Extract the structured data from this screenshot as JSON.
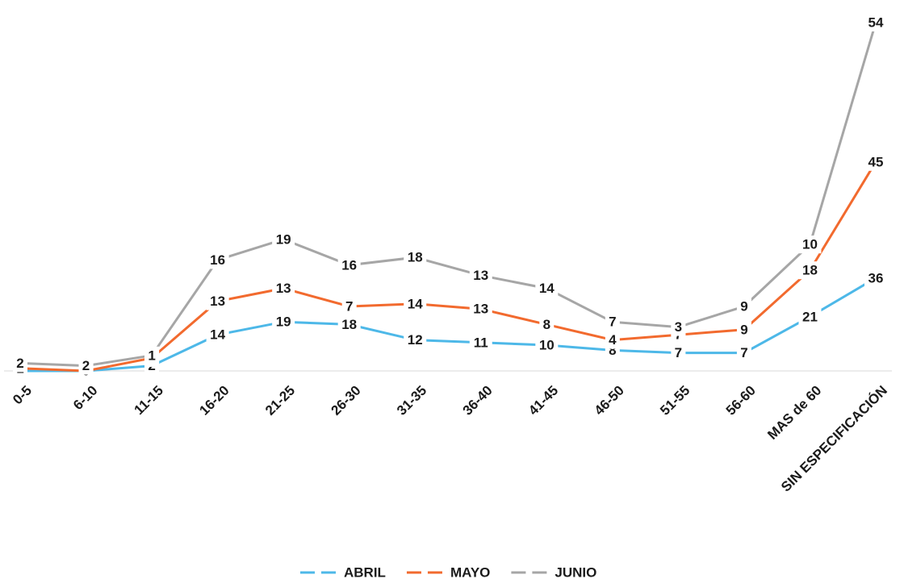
{
  "chart_data": {
    "type": "line",
    "stacked": true,
    "categories": [
      "0-5",
      "6-10",
      "11-15",
      "16-20",
      "21-25",
      "26-30",
      "31-35",
      "36-40",
      "41-45",
      "46-50",
      "51-55",
      "56-60",
      "MAS de 60",
      "SIN ESPECIFICACIÓN"
    ],
    "series": [
      {
        "name": "ABRIL",
        "color": "#4db8e8",
        "values": [
          0,
          0,
          2,
          14,
          19,
          18,
          12,
          11,
          10,
          8,
          7,
          7,
          21,
          36
        ]
      },
      {
        "name": "MAYO",
        "color": "#f26a2e",
        "values": [
          1,
          0,
          3,
          13,
          13,
          7,
          14,
          13,
          8,
          4,
          7,
          9,
          18,
          45
        ]
      },
      {
        "name": "JUNIO",
        "color": "#a6a6a6",
        "values": [
          2,
          2,
          1,
          16,
          19,
          16,
          18,
          13,
          14,
          7,
          3,
          9,
          10,
          54
        ]
      }
    ],
    "ylim": [
      0,
      140
    ],
    "legend": "bottom"
  }
}
